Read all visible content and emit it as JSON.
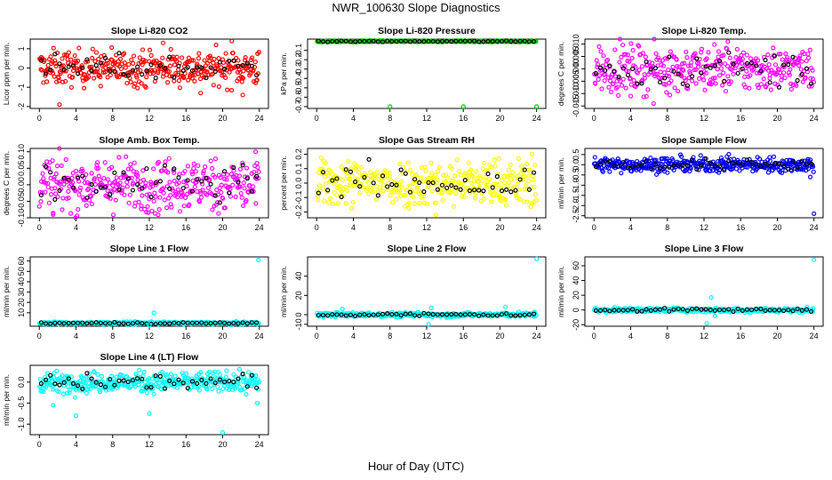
{
  "title": "NWR_100630  Slope Diagnostics",
  "xlabel": "Hour of Day (UTC)",
  "chart_data": [
    {
      "type": "scatter",
      "title": "Slope Li-820 CO2",
      "ylabel": "Licor ppm per min.",
      "color": "#ff0000",
      "xlim": [
        -1,
        25
      ],
      "ylim": [
        -2.1,
        1.5
      ],
      "xticks": [
        0,
        4,
        8,
        12,
        16,
        20,
        24
      ],
      "xtick_labels": [
        "0",
        "4",
        "8",
        "12",
        "16",
        "20",
        "24"
      ],
      "yticks": [
        -2,
        -1,
        0,
        1
      ],
      "ytick_labels": [
        "-2",
        "-1",
        "0",
        "1"
      ],
      "center": 0.0,
      "spread": 0.45,
      "n": 360,
      "outliers": [
        [
          2.2,
          -1.9
        ],
        [
          13.5,
          1.3
        ],
        [
          21.0,
          1.4
        ],
        [
          22.2,
          -1.4
        ],
        [
          17.6,
          -1.3
        ]
      ]
    },
    {
      "type": "scatter",
      "title": "Slope Li-820 Pressure",
      "ylabel": "kPa per min.",
      "color": "#00cc00",
      "xlim": [
        -1,
        25
      ],
      "ylim": [
        -0.72,
        0.02
      ],
      "xticks": [
        0,
        4,
        8,
        12,
        16,
        20,
        24
      ],
      "xtick_labels": [
        "0",
        "4",
        "8",
        "12",
        "16",
        "20",
        "24"
      ],
      "yticks": [
        -0.1,
        -0.2,
        -0.3,
        -0.4,
        -0.5,
        -0.6,
        -0.7
      ],
      "ytick_labels": [
        "-0.1",
        "-0.2",
        "-0.3",
        "-0.4",
        "-0.5",
        "-0.6",
        "-0.7"
      ],
      "center": -0.004,
      "spread": 0.004,
      "n": 300,
      "outliers": [
        [
          8.0,
          -0.7
        ],
        [
          16.0,
          -0.7
        ],
        [
          24.0,
          -0.7
        ]
      ]
    },
    {
      "type": "scatter",
      "title": "Slope Li-820 Temp.",
      "ylabel": "degrees C per min.",
      "color": "#ff00ff",
      "xlim": [
        -1,
        25
      ],
      "ylim": [
        -0.016,
        0.012
      ],
      "xticks": [
        0,
        4,
        8,
        12,
        16,
        20,
        24
      ],
      "xtick_labels": [
        "0",
        "4",
        "8",
        "12",
        "16",
        "20",
        "24"
      ],
      "yticks": [
        -0.015,
        -0.01,
        -0.005,
        0.0,
        0.005,
        0.01
      ],
      "ytick_labels": [
        "-0.015",
        "-0.010",
        "-0.005",
        "0.000",
        "0.005",
        "0.010"
      ],
      "center": 0.0,
      "spread": 0.0045,
      "n": 360,
      "outliers": [
        [
          14.6,
          0.011
        ],
        [
          4.0,
          -0.011
        ],
        [
          6.5,
          -0.014
        ]
      ]
    },
    {
      "type": "scatter",
      "title": "Slope Amb. Box Temp.",
      "ylabel": "degrees C per min.",
      "color": "#ff00ff",
      "xlim": [
        -1,
        25
      ],
      "ylim": [
        -0.1,
        0.11
      ],
      "xticks": [
        0,
        4,
        8,
        12,
        16,
        20,
        24
      ],
      "xtick_labels": [
        "0",
        "4",
        "8",
        "12",
        "16",
        "20",
        "24"
      ],
      "yticks": [
        -0.1,
        -0.05,
        0.0,
        0.05,
        0.1
      ],
      "ytick_labels": [
        "-0.10",
        "-0.05",
        "0.00",
        "0.05",
        "0.10"
      ],
      "center": 0.0,
      "spread": 0.04,
      "n": 360,
      "outliers": [
        [
          23.6,
          0.1
        ],
        [
          1.5,
          -0.09
        ]
      ]
    },
    {
      "type": "scatter",
      "title": "Slope Gas Stream RH",
      "ylabel": "percent per min.",
      "color": "#ffff00",
      "xlim": [
        -1,
        25
      ],
      "ylim": [
        -0.24,
        0.24
      ],
      "xticks": [
        0,
        4,
        8,
        12,
        16,
        20,
        24
      ],
      "xtick_labels": [
        "0",
        "4",
        "8",
        "12",
        "16",
        "20",
        "24"
      ],
      "yticks": [
        -0.2,
        -0.1,
        0.0,
        0.1,
        0.2
      ],
      "ytick_labels": [
        "-0.2",
        "-0.1",
        "0.0",
        "0.1",
        "0.2"
      ],
      "center": 0.0,
      "spread": 0.08,
      "n": 360,
      "outliers": [
        [
          23.5,
          0.2
        ],
        [
          13.0,
          -0.22
        ]
      ]
    },
    {
      "type": "scatter",
      "title": "Slope Sample Flow",
      "ylabel": "ml/min per min.",
      "color": "#0000ff",
      "xlim": [
        -1,
        25
      ],
      "ylim": [
        -2.6,
        0.8
      ],
      "xticks": [
        0,
        4,
        8,
        12,
        16,
        20,
        24
      ],
      "xtick_labels": [
        "0",
        "4",
        "8",
        "12",
        "16",
        "20",
        "24"
      ],
      "yticks": [
        0.5,
        0.0,
        -0.5,
        -1.0,
        -1.5,
        -2.0,
        -2.5
      ],
      "ytick_labels": [
        "0.5",
        "0.0",
        "-0.5",
        "-1.0",
        "-1.5",
        "-2.0",
        "-2.5"
      ],
      "center": 0.0,
      "spread": 0.18,
      "n": 360,
      "outliers": [
        [
          24.0,
          -2.4
        ],
        [
          23.6,
          -0.6
        ],
        [
          14.5,
          0.4
        ]
      ]
    },
    {
      "type": "scatter",
      "title": "Slope Line 1 Flow",
      "ylabel": "ml/min per min.",
      "color": "#00ffff",
      "xlim": [
        -1,
        25
      ],
      "ylim": [
        -3,
        64
      ],
      "xticks": [
        0,
        4,
        8,
        12,
        16,
        20,
        24
      ],
      "xtick_labels": [
        "0",
        "4",
        "8",
        "12",
        "16",
        "20",
        "24"
      ],
      "yticks": [
        10,
        20,
        30,
        40,
        50,
        60
      ],
      "ytick_labels": [
        "10",
        "20",
        "30",
        "40",
        "50",
        "60"
      ],
      "center": 0.0,
      "spread": 0.6,
      "n": 300,
      "outliers": [
        [
          23.9,
          61
        ],
        [
          12.5,
          10
        ],
        [
          12.0,
          -2
        ]
      ]
    },
    {
      "type": "scatter",
      "title": "Slope Line 2 Flow",
      "ylabel": "ml/min per min.",
      "color": "#00ffff",
      "xlim": [
        -1,
        25
      ],
      "ylim": [
        -12,
        60
      ],
      "xticks": [
        0,
        4,
        8,
        12,
        16,
        20,
        24
      ],
      "xtick_labels": [
        "0",
        "4",
        "8",
        "12",
        "16",
        "20",
        "24"
      ],
      "yticks": [
        -10,
        0,
        20,
        40
      ],
      "ytick_labels": [
        "-10",
        "0",
        "20",
        "40"
      ],
      "center": 0.0,
      "spread": 1.2,
      "n": 300,
      "outliers": [
        [
          24.0,
          58
        ],
        [
          12.2,
          -10
        ],
        [
          20.6,
          8
        ],
        [
          2.8,
          6
        ],
        [
          12.5,
          7
        ]
      ]
    },
    {
      "type": "scatter",
      "title": "Slope Line 3 Flow",
      "ylabel": "ml/min per min.",
      "color": "#00ffff",
      "xlim": [
        -1,
        25
      ],
      "ylim": [
        -22,
        72
      ],
      "xticks": [
        0,
        4,
        8,
        12,
        16,
        20,
        24
      ],
      "xtick_labels": [
        "0",
        "4",
        "8",
        "12",
        "16",
        "20",
        "24"
      ],
      "yticks": [
        -20,
        0,
        20,
        40,
        60
      ],
      "ytick_labels": [
        "-20",
        "0",
        "20",
        "40",
        "60"
      ],
      "center": 0.0,
      "spread": 1.5,
      "n": 300,
      "outliers": [
        [
          24.0,
          68
        ],
        [
          12.3,
          -18
        ],
        [
          12.8,
          17
        ],
        [
          13.2,
          -8
        ]
      ]
    },
    {
      "type": "scatter",
      "title": "Slope Line 4 (LT) Flow",
      "ylabel": "ml/min per min.",
      "color": "#00ffff",
      "xlim": [
        -1,
        25
      ],
      "ylim": [
        -1.25,
        0.4
      ],
      "xticks": [
        0,
        4,
        8,
        12,
        16,
        20,
        24
      ],
      "xtick_labels": [
        "0",
        "4",
        "8",
        "12",
        "16",
        "20",
        "24"
      ],
      "yticks": [
        0.0,
        -0.5,
        -1.0
      ],
      "ytick_labels": [
        "0.0",
        "-0.5",
        "-1.0"
      ],
      "center": 0.0,
      "spread": 0.12,
      "n": 360,
      "outliers": [
        [
          20.0,
          -1.2
        ],
        [
          4.0,
          -0.8
        ],
        [
          12.0,
          -0.75
        ],
        [
          1.5,
          -0.55
        ],
        [
          23.8,
          -0.5
        ]
      ]
    }
  ]
}
